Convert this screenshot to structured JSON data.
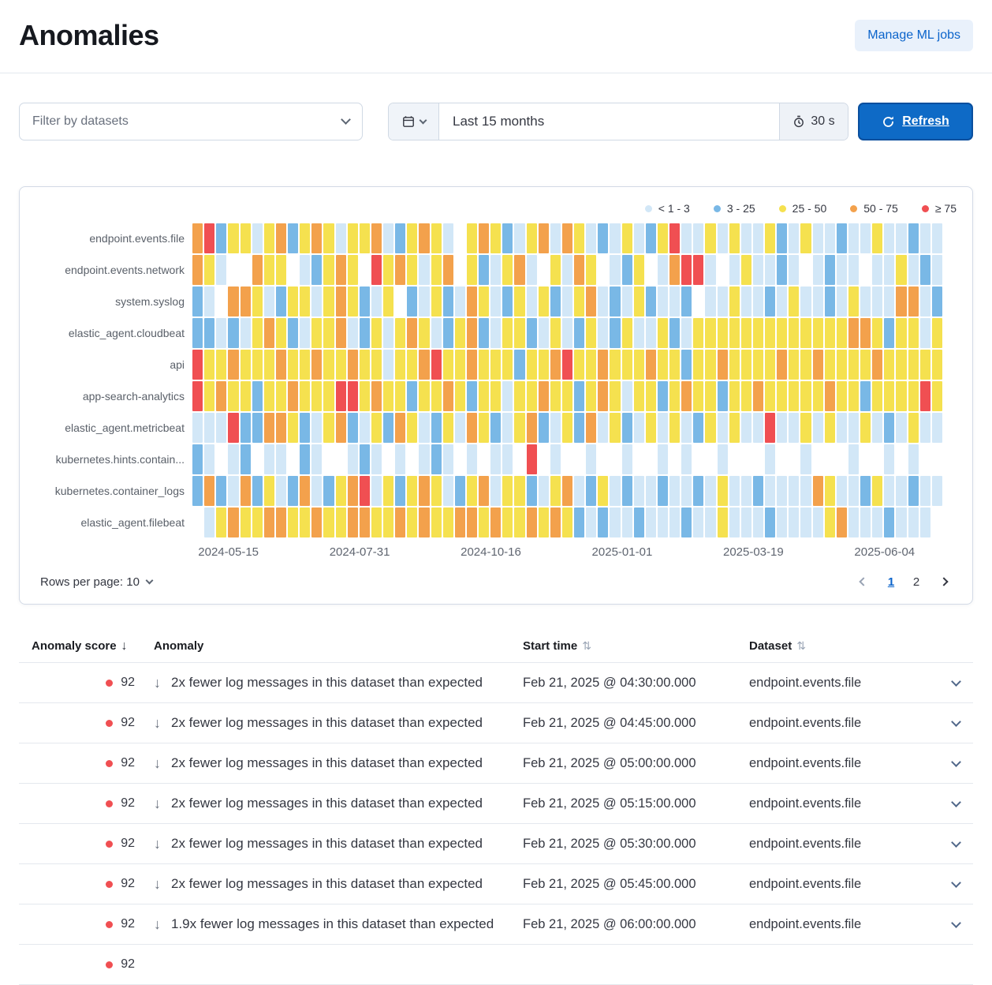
{
  "page": {
    "title": "Anomalies"
  },
  "header": {
    "manage_ml_jobs_label": "Manage ML jobs"
  },
  "toolbar": {
    "dataset_filter_placeholder": "Filter by datasets",
    "time_range": "Last 15 months",
    "refresh_interval": "30 s",
    "refresh_label": "Refresh"
  },
  "heatmap": {
    "legend": [
      {
        "label": "< 1 - 3",
        "color": "#d2e7f7"
      },
      {
        "label": "3 - 25",
        "color": "#79b8e6"
      },
      {
        "label": "25 - 50",
        "color": "#f5e14f"
      },
      {
        "label": "50 - 75",
        "color": "#f3a14c"
      },
      {
        "label": "≥ 75",
        "color": "#f04f52"
      }
    ],
    "colors": {
      "p": "#d2e7f7",
      "b": "#79b8e6",
      "y": "#f5e14f",
      "o": "#f3a14c",
      "r": "#f04f52",
      ".": "transparent"
    },
    "rows": [
      {
        "label": "endpoint.events.file",
        "cells": "orbyypyobyoypyyopbyoyp.yoybpyopoypbpypbyrppypyppybpyppbppyppbpp"
      },
      {
        "label": "endpoint.events.network",
        "cells": "oyp..oyy.pbyoy.ryoypyo.ybpyop.ypoy.pby.porrp.pyppbp.pbpp.ppypbp"
      },
      {
        "label": "system.syslog",
        "cells": "bp.ooypbyypyoybpy.bpybpoypbypybpyopbpybppb.ppyppbpyppbpypppoopb"
      },
      {
        "label": "elastic_agent.cloudbeat",
        "cells": "bbpbpyoybpyyopbypyoypbyobpyybpypbypbyppybpyyyyyyyyyyyyyooybyypy"
      },
      {
        "label": "api",
        "cells": "ryyoyyyoyyoyyoyypyyoryyoyyybyyoryyoyyyoyybyyoyyyyoyyoyyyyoyyyyy"
      },
      {
        "label": "app-search-analytics",
        "cells": "ryoyybyyoyyyrryoyybyyoybyypyyoyybyoypyybyoyybyyoyyyyyoyybyyyyry"
      },
      {
        "label": "elastic_agent.metricbeat",
        "cells": "ppprbbooybpyobpyboypbypoybpyobpybopybpypypbypypprppypyppypbpypp"
      },
      {
        "label": "kubernetes.hints.contain...",
        "cells": "bp.pb.pp.bp..pbp.p.pbp.p.pp.r.p..p..p..p.p..p...p..p...p..p.p.."
      },
      {
        "label": "kubernetes.container_logs",
        "cells": "bobpobypbopbyorpybyoypbyopyybpyopbypbppbppbpyppbppppoyppbyppbpp"
      },
      {
        "label": "elastic_agent.filebeat",
        "cells": ".pyoyyooyyoyyooyyoyoyyooyoyyoyoybpbppbpppbppypppbppppyopppbppp."
      }
    ],
    "x_labels": [
      "2024-05-15",
      "2024-07-31",
      "2024-10-16",
      "2025-01-01",
      "2025-03-19",
      "2025-06-04"
    ],
    "rows_per_page_label": "Rows per page: 10",
    "pagination": {
      "pages": [
        "1",
        "2"
      ],
      "active_page": "1"
    }
  },
  "table": {
    "columns": [
      {
        "label": "Anomaly score",
        "sort": "desc"
      },
      {
        "label": "Anomaly",
        "sort": "none"
      },
      {
        "label": "Start time",
        "sort": "sortable"
      },
      {
        "label": "Dataset",
        "sort": "sortable"
      }
    ],
    "severity_color": "#f04f52",
    "rows": [
      {
        "score": "92",
        "anomaly": "2x fewer log messages in this dataset than expected",
        "start_time": "Feb 21, 2025 @ 04:30:00.000",
        "dataset": "endpoint.events.file"
      },
      {
        "score": "92",
        "anomaly": "2x fewer log messages in this dataset than expected",
        "start_time": "Feb 21, 2025 @ 04:45:00.000",
        "dataset": "endpoint.events.file"
      },
      {
        "score": "92",
        "anomaly": "2x fewer log messages in this dataset than expected",
        "start_time": "Feb 21, 2025 @ 05:00:00.000",
        "dataset": "endpoint.events.file"
      },
      {
        "score": "92",
        "anomaly": "2x fewer log messages in this dataset than expected",
        "start_time": "Feb 21, 2025 @ 05:15:00.000",
        "dataset": "endpoint.events.file"
      },
      {
        "score": "92",
        "anomaly": "2x fewer log messages in this dataset than expected",
        "start_time": "Feb 21, 2025 @ 05:30:00.000",
        "dataset": "endpoint.events.file"
      },
      {
        "score": "92",
        "anomaly": "2x fewer log messages in this dataset than expected",
        "start_time": "Feb 21, 2025 @ 05:45:00.000",
        "dataset": "endpoint.events.file"
      },
      {
        "score": "92",
        "anomaly": "1.9x fewer log messages in this dataset than expected",
        "start_time": "Feb 21, 2025 @ 06:00:00.000",
        "dataset": "endpoint.events.file"
      },
      {
        "score": "92",
        "partial": true
      }
    ]
  }
}
